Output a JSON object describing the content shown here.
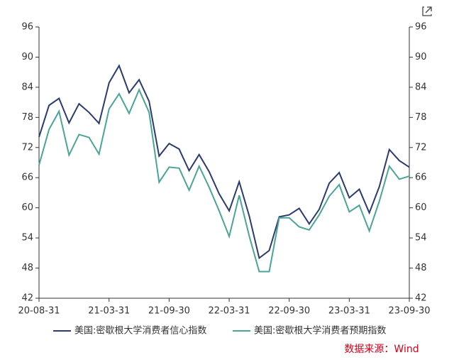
{
  "chart_data": {
    "type": "line",
    "categories": [
      "20-08-31",
      null,
      null,
      null,
      null,
      null,
      null,
      "21-03-31",
      null,
      null,
      null,
      null,
      null,
      "21-09-30",
      null,
      null,
      null,
      null,
      null,
      "22-03-31",
      null,
      null,
      null,
      null,
      null,
      "22-09-30",
      null,
      null,
      null,
      null,
      null,
      "23-03-31",
      null,
      null,
      null,
      null,
      null,
      "23-09-30"
    ],
    "series": [
      {
        "name": "美国:密歇根大学消费者信心指数",
        "color": "#2b3a6f",
        "values": [
          74.1,
          80.4,
          81.8,
          76.9,
          80.7,
          79.0,
          76.8,
          84.9,
          88.3,
          82.9,
          85.5,
          81.2,
          70.3,
          72.8,
          71.7,
          67.4,
          70.6,
          67.2,
          62.8,
          59.4,
          65.2,
          58.4,
          50.0,
          51.5,
          58.2,
          58.6,
          59.9,
          56.8,
          59.7,
          64.9,
          67.0,
          62.0,
          63.7,
          59.0,
          64.2,
          71.6,
          69.4,
          68.1
        ]
      },
      {
        "name": "美国:密歇根大学消费者预期指数",
        "color": "#4aa595",
        "values": [
          68.5,
          75.6,
          79.2,
          70.5,
          74.6,
          74.0,
          70.7,
          79.7,
          82.7,
          78.8,
          83.5,
          79.0,
          65.1,
          68.1,
          67.9,
          63.5,
          68.3,
          64.1,
          59.4,
          54.3,
          62.5,
          54.4,
          47.3,
          47.3,
          58.0,
          58.0,
          56.2,
          55.6,
          58.6,
          62.3,
          64.6,
          59.2,
          60.5,
          55.4,
          61.3,
          68.3,
          65.7,
          66.3
        ]
      }
    ],
    "ylim": [
      42,
      96
    ],
    "yticks": [
      42,
      48,
      54,
      60,
      66,
      72,
      78,
      84,
      90,
      96
    ],
    "y2lim": [
      42,
      96
    ],
    "y2ticks": [
      42,
      48,
      54,
      60,
      66,
      72,
      78,
      84,
      90,
      96
    ],
    "source": "数据来源：Wind"
  }
}
